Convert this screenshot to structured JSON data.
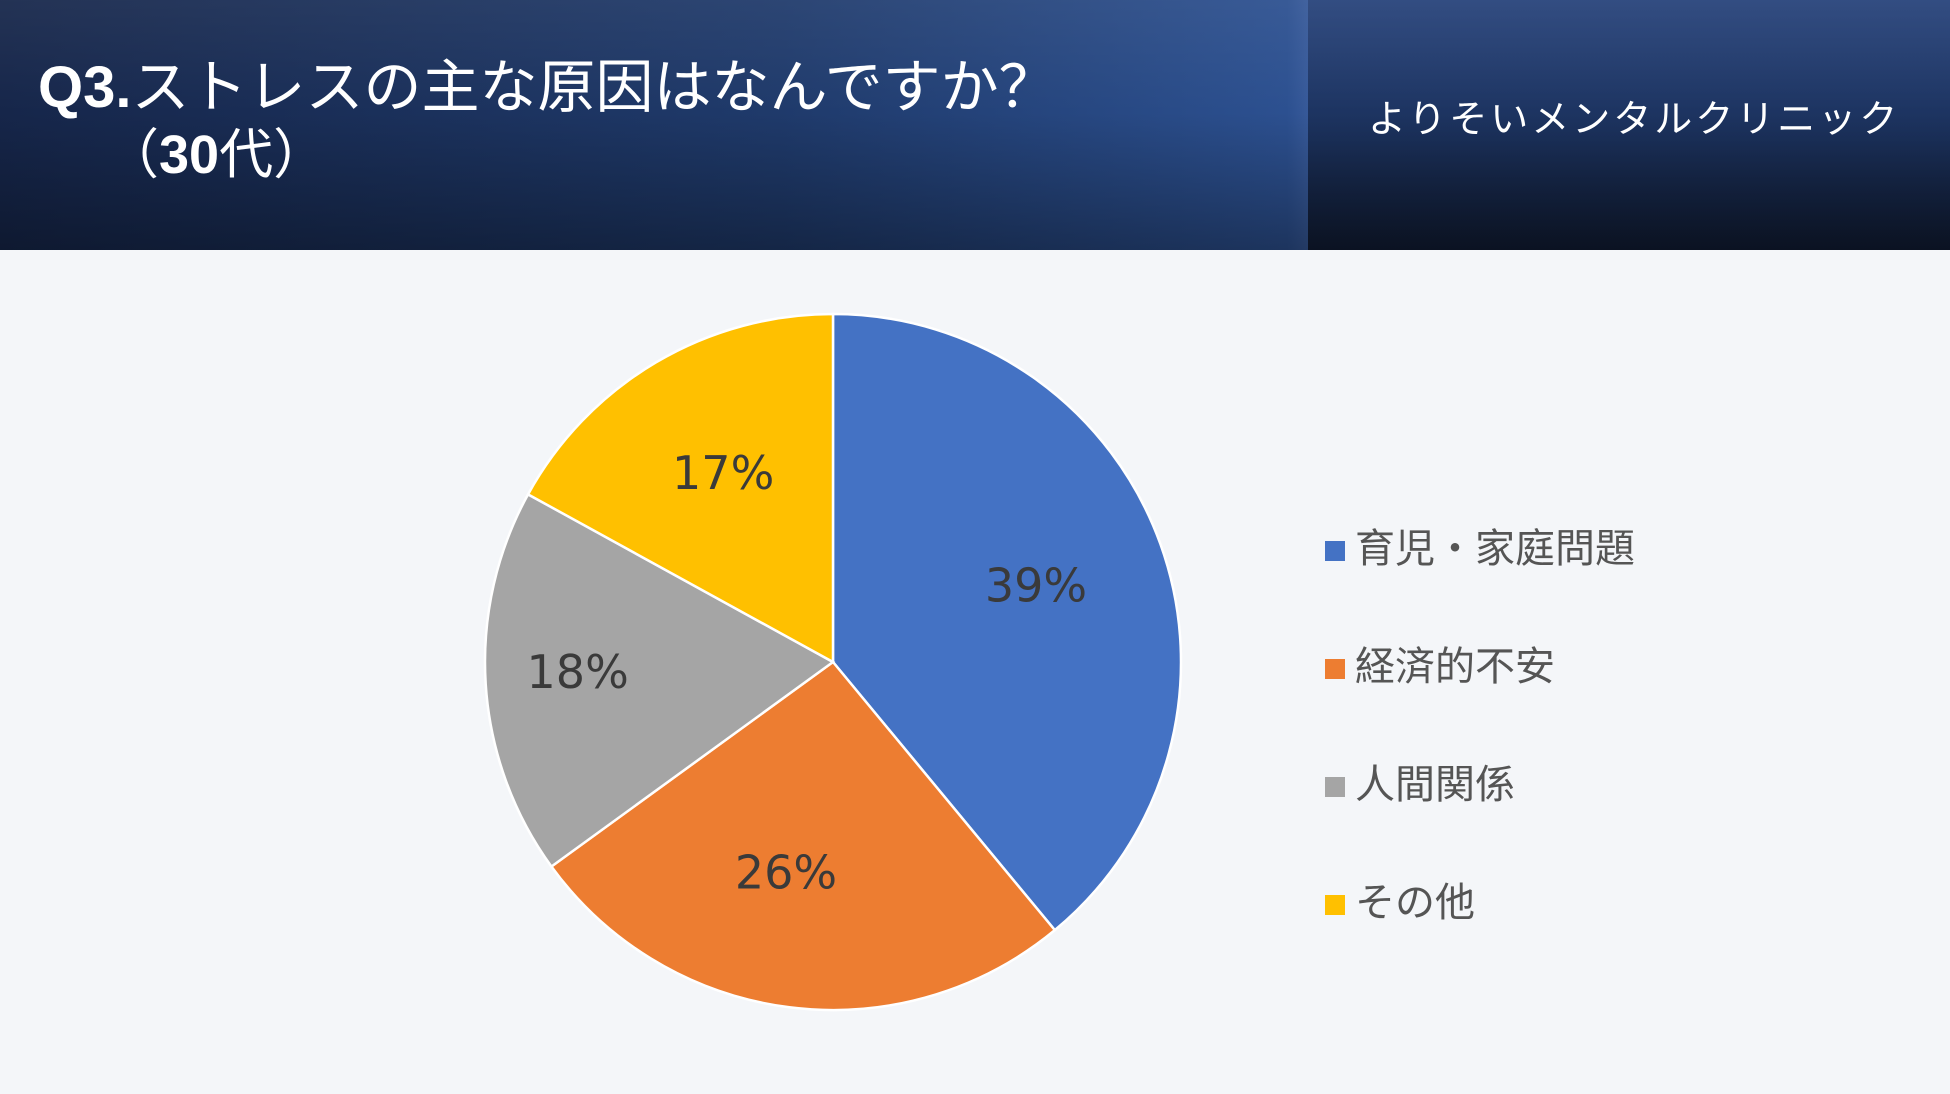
{
  "header": {
    "title_prefix": "Q3.",
    "title_text": "ストレスの主な原因はなんですか？",
    "subtitle_open": "（",
    "subtitle_num": "30",
    "subtitle_rest": "代）",
    "clinic_name": "よりそいメンタルクリニック"
  },
  "chart_data": {
    "type": "pie",
    "categories": [
      "育児・家庭問題",
      "経済的不安",
      "人間関係",
      "その他"
    ],
    "values": [
      39,
      26,
      18,
      17
    ],
    "data_labels": [
      "39%",
      "26%",
      "18%",
      "17%"
    ],
    "colors": [
      "#4472c4",
      "#ed7d31",
      "#a5a5a5",
      "#ffc000"
    ],
    "legend_position": "right"
  }
}
